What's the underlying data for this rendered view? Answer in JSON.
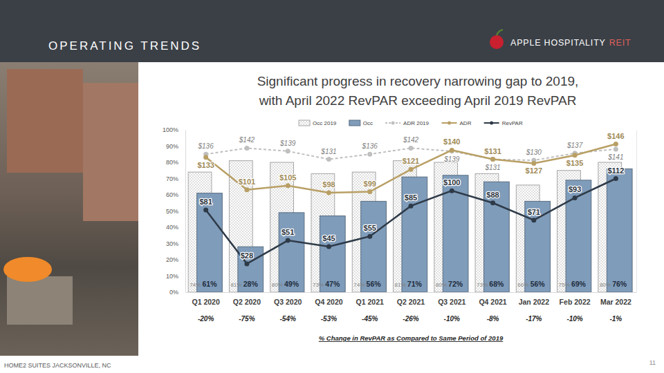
{
  "header": {
    "title": "OPERATING TRENDS",
    "logo_name": "APPLE HOSPITALITY",
    "logo_suffix": "REIT"
  },
  "photo_caption": "HOME2 SUITES JACKSONVILLE, NC",
  "page_number": "11",
  "chart_data": {
    "type": "bar",
    "title": "Significant progress in recovery narrowing gap to 2019, with April 2022 RevPAR exceeding April 2019 RevPAR",
    "categories": [
      "Q1 2020",
      "Q2 2020",
      "Q3 2020",
      "Q4 2020",
      "Q1 2021",
      "Q2 2021",
      "Q3 2021",
      "Q4 2021",
      "Jan 2022",
      "Feb 2022",
      "Mar 2022"
    ],
    "ylim": [
      0,
      100
    ],
    "yticks": [
      {
        "value": 0,
        "label": "0%"
      },
      {
        "value": 10,
        "label": "10%"
      },
      {
        "value": 20,
        "label": "20%"
      },
      {
        "value": 30,
        "label": "30%"
      },
      {
        "value": 40,
        "label": "40%"
      },
      {
        "value": 50,
        "label": "50%"
      },
      {
        "value": 60,
        "label": "60%"
      },
      {
        "value": 70,
        "label": "70%"
      },
      {
        "value": 80,
        "label": "80%"
      },
      {
        "value": 90,
        "label": "90%"
      },
      {
        "value": 100,
        "label": "100%"
      }
    ],
    "y2lim": [
      0,
      160
    ],
    "y2ticks": [],
    "grid": false,
    "legend": "top",
    "data_labels": true,
    "series": [
      {
        "name": "Occ 2019",
        "type": "bar",
        "color": "#a6a6a6",
        "line_style": "dotted",
        "values": [
          74,
          81,
          80,
          73,
          74,
          81,
          80,
          73,
          66,
          75,
          80
        ],
        "value_labels": [
          "74%",
          "81%",
          "80%",
          "73%",
          "74%",
          "81%",
          "80%",
          "73%",
          "66%",
          "75%",
          "80%"
        ]
      },
      {
        "name": "Occ",
        "type": "bar",
        "color": "#7f9cba",
        "line_style": "solid",
        "values": [
          61,
          28,
          49,
          47,
          56,
          71,
          72,
          68,
          56,
          69,
          76
        ],
        "value_labels": [
          "61%",
          "28%",
          "49%",
          "47%",
          "56%",
          "71%",
          "72%",
          "68%",
          "56%",
          "69%",
          "76%"
        ]
      },
      {
        "name": "ADR 2019",
        "type": "line",
        "axis": "y2",
        "color": "#bfbfbf",
        "line_style": "dashed",
        "marker": "circle",
        "values": [
          136,
          142,
          139,
          131,
          136,
          142,
          139,
          131,
          130,
          137,
          141
        ],
        "value_labels": [
          "$136",
          "$142",
          "$139",
          "$131",
          "$136",
          "$142",
          "$139",
          "$131",
          "$130",
          "$137",
          "$141"
        ]
      },
      {
        "name": "ADR",
        "type": "line",
        "axis": "y2",
        "color": "#b89f64",
        "line_style": "solid",
        "marker": "circle",
        "values": [
          133,
          101,
          105,
          98,
          99,
          121,
          140,
          131,
          127,
          135,
          146
        ],
        "value_labels": [
          "$133",
          "$101",
          "$105",
          "$98",
          "$99",
          "$121",
          "$140",
          "$131",
          "$127",
          "$135",
          "$146"
        ]
      },
      {
        "name": "RevPAR",
        "type": "line",
        "axis": "y2",
        "color": "#2e3a48",
        "line_style": "solid",
        "marker": "circle",
        "values": [
          81,
          28,
          51,
          45,
          55,
          85,
          100,
          88,
          71,
          93,
          112
        ],
        "value_labels": [
          "$81",
          "$28",
          "$51",
          "$45",
          "$55",
          "$85",
          "$100",
          "$88",
          "$71",
          "$93",
          "$112"
        ]
      }
    ],
    "revpar_change": {
      "label": "% Change in RevPAR as Compared to Same Period of 2019",
      "values": [
        -20,
        -75,
        -54,
        -53,
        -45,
        -26,
        -10,
        -8,
        -17,
        -10,
        -1
      ],
      "value_labels": [
        "-20%",
        "-75%",
        "-54%",
        "-53%",
        "-45%",
        "-26%",
        "-10%",
        "-8%",
        "-17%",
        "-10%",
        "-1%"
      ]
    }
  }
}
